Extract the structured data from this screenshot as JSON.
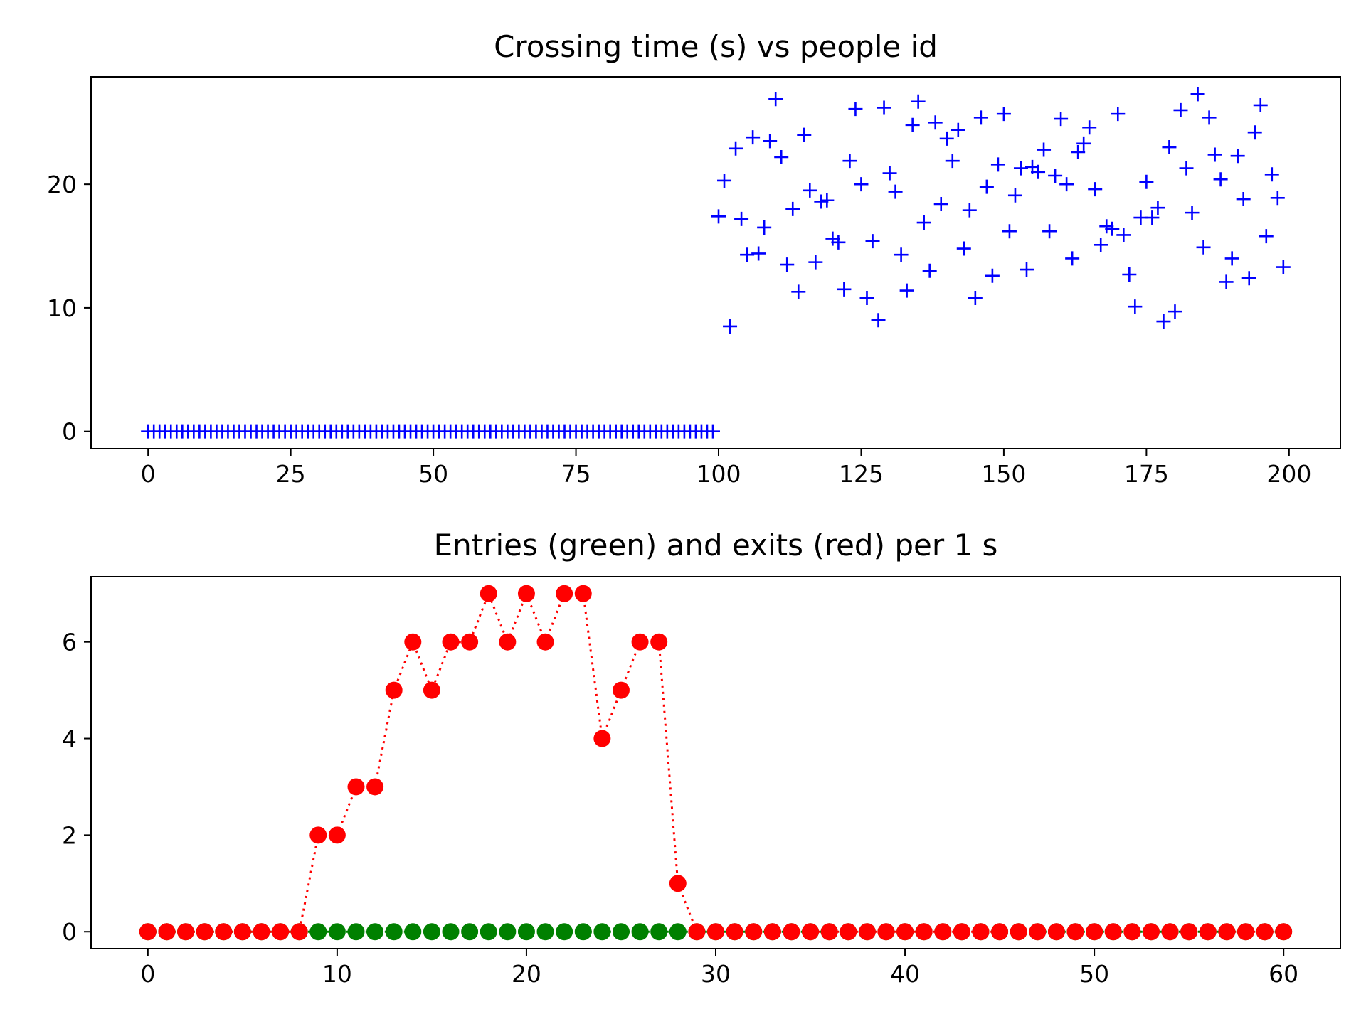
{
  "chart_data": [
    {
      "type": "scatter",
      "title": "Crossing time (s) vs people id",
      "xlabel": "",
      "ylabel": "",
      "xlim": [
        -10,
        209
      ],
      "ylim": [
        -1.4,
        28.7
      ],
      "xticks": [
        0,
        25,
        50,
        75,
        100,
        125,
        150,
        175,
        200
      ],
      "yticks": [
        0,
        10,
        20
      ],
      "marker": "+",
      "grid": false,
      "legend": "none",
      "colors": {
        "points": "#0000ff"
      },
      "series": [
        {
          "x": [
            0,
            1,
            2,
            3,
            4,
            5,
            6,
            7,
            8,
            9,
            10,
            11,
            12,
            13,
            14,
            15,
            16,
            17,
            18,
            19,
            20,
            21,
            22,
            23,
            24,
            25,
            26,
            27,
            28,
            29,
            30,
            31,
            32,
            33,
            34,
            35,
            36,
            37,
            38,
            39,
            40,
            41,
            42,
            43,
            44,
            45,
            46,
            47,
            48,
            49,
            50,
            51,
            52,
            53,
            54,
            55,
            56,
            57,
            58,
            59,
            60,
            61,
            62,
            63,
            64,
            65,
            66,
            67,
            68,
            69,
            70,
            71,
            72,
            73,
            74,
            75,
            76,
            77,
            78,
            79,
            80,
            81,
            82,
            83,
            84,
            85,
            86,
            87,
            88,
            89,
            90,
            91,
            92,
            93,
            94,
            95,
            96,
            97,
            98,
            99,
            100,
            101,
            102,
            103,
            104,
            105,
            106,
            107,
            108,
            109,
            110,
            111,
            112,
            113,
            114,
            115,
            116,
            117,
            118,
            119,
            120,
            121,
            122,
            123,
            124,
            125,
            126,
            127,
            128,
            129,
            130,
            131,
            132,
            133,
            134,
            135,
            136,
            137,
            138,
            139,
            140,
            141,
            142,
            143,
            144,
            145,
            146,
            147,
            148,
            149,
            150,
            151,
            152,
            153,
            154,
            155,
            156,
            157,
            158,
            159,
            160,
            161,
            162,
            163,
            164,
            165,
            166,
            167,
            168,
            169,
            170,
            171,
            172,
            173,
            174,
            175,
            176,
            177,
            178,
            179,
            180,
            181,
            182,
            183,
            184,
            185,
            186,
            187,
            188,
            189,
            190,
            191,
            192,
            193,
            194,
            195,
            196,
            197,
            198,
            199
          ],
          "y": [
            0,
            0,
            0,
            0,
            0,
            0,
            0,
            0,
            0,
            0,
            0,
            0,
            0,
            0,
            0,
            0,
            0,
            0,
            0,
            0,
            0,
            0,
            0,
            0,
            0,
            0,
            0,
            0,
            0,
            0,
            0,
            0,
            0,
            0,
            0,
            0,
            0,
            0,
            0,
            0,
            0,
            0,
            0,
            0,
            0,
            0,
            0,
            0,
            0,
            0,
            0,
            0,
            0,
            0,
            0,
            0,
            0,
            0,
            0,
            0,
            0,
            0,
            0,
            0,
            0,
            0,
            0,
            0,
            0,
            0,
            0,
            0,
            0,
            0,
            0,
            0,
            0,
            0,
            0,
            0,
            0,
            0,
            0,
            0,
            0,
            0,
            0,
            0,
            0,
            0,
            0,
            0,
            0,
            0,
            0,
            0,
            0,
            0,
            0,
            0,
            17.4,
            20.3,
            8.5,
            22.9,
            17.2,
            14.3,
            23.8,
            14.4,
            16.5,
            23.5,
            26.9,
            22.2,
            13.5,
            18.0,
            11.3,
            24.0,
            19.5,
            13.7,
            18.6,
            18.7,
            15.6,
            15.3,
            11.5,
            21.9,
            26.1,
            20.0,
            10.8,
            15.4,
            9.0,
            26.2,
            20.9,
            19.4,
            14.3,
            11.4,
            24.8,
            26.7,
            16.9,
            13.0,
            25.0,
            18.4,
            23.7,
            21.9,
            24.4,
            14.8,
            17.9,
            10.8,
            25.4,
            19.8,
            12.6,
            21.6,
            25.7,
            16.2,
            19.1,
            21.3,
            13.1,
            21.4,
            21.0,
            22.8,
            16.2,
            20.7,
            25.3,
            20.0,
            14.0,
            22.6,
            23.3,
            24.6,
            19.6,
            15.1,
            16.6,
            16.4,
            25.7,
            15.9,
            12.7,
            10.1,
            17.3,
            20.2,
            17.3,
            18.1,
            8.9,
            23.0,
            9.7,
            26.0,
            21.3,
            17.7,
            27.3,
            14.9,
            25.4,
            22.4,
            20.4,
            12.1,
            14.0,
            22.3,
            18.8,
            12.4,
            24.2,
            26.4,
            15.8,
            20.8,
            18.9,
            13.3
          ]
        }
      ]
    },
    {
      "type": "line",
      "title": "Entries (green) and exits (red) per 1 s",
      "xlabel": "",
      "ylabel": "",
      "xlim": [
        -3,
        63
      ],
      "ylim": [
        -0.35,
        7.35
      ],
      "xticks": [
        0,
        10,
        20,
        30,
        40,
        50,
        60
      ],
      "yticks": [
        0,
        2,
        4,
        6
      ],
      "grid": false,
      "legend": "none",
      "linestyle": "dotted",
      "marker": "circle",
      "x": [
        0,
        1,
        2,
        3,
        4,
        5,
        6,
        7,
        8,
        9,
        10,
        11,
        12,
        13,
        14,
        15,
        16,
        17,
        18,
        19,
        20,
        21,
        22,
        23,
        24,
        25,
        26,
        27,
        28,
        29,
        30,
        31,
        32,
        33,
        34,
        35,
        36,
        37,
        38,
        39,
        40,
        41,
        42,
        43,
        44,
        45,
        46,
        47,
        48,
        49,
        50,
        51,
        52,
        53,
        54,
        55,
        56,
        57,
        58,
        59,
        60
      ],
      "series": [
        {
          "color": "#008000",
          "values": [
            0,
            0,
            0,
            0,
            0,
            0,
            0,
            0,
            0,
            0,
            0,
            0,
            0,
            0,
            0,
            0,
            0,
            0,
            0,
            0,
            0,
            0,
            0,
            0,
            0,
            0,
            0,
            0,
            0,
            0,
            0,
            0,
            0,
            0,
            0,
            0,
            0,
            0,
            0,
            0,
            0,
            0,
            0,
            0,
            0,
            0,
            0,
            0,
            0,
            0,
            0,
            0,
            0,
            0,
            0,
            0,
            0,
            0,
            0,
            0,
            0
          ]
        },
        {
          "color": "#ff0000",
          "values": [
            0,
            0,
            0,
            0,
            0,
            0,
            0,
            0,
            0,
            2,
            2,
            3,
            3,
            5,
            6,
            5,
            6,
            6,
            7,
            6,
            7,
            6,
            7,
            7,
            4,
            5,
            6,
            6,
            1,
            0,
            0,
            0,
            0,
            0,
            0,
            0,
            0,
            0,
            0,
            0,
            0,
            0,
            0,
            0,
            0,
            0,
            0,
            0,
            0,
            0,
            0,
            0,
            0,
            0,
            0,
            0,
            0,
            0,
            0,
            0,
            0
          ]
        }
      ]
    }
  ]
}
